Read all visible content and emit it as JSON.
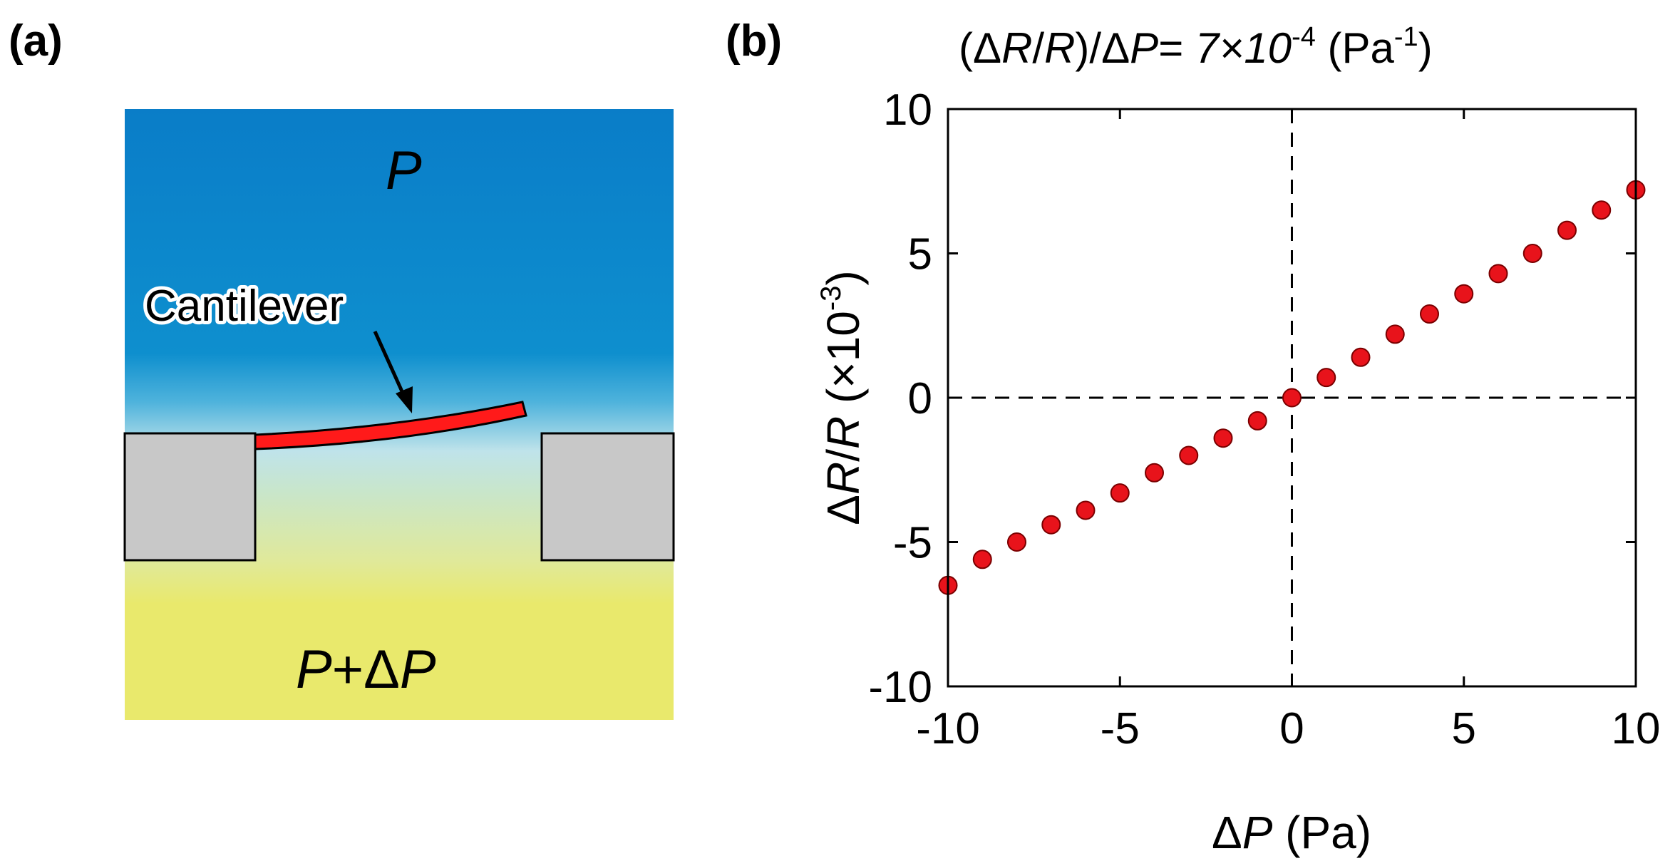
{
  "panel_a": {
    "label": "(a)",
    "top_region_label": "P",
    "bottom_region_label_p": "P",
    "bottom_region_label_plus": "+Δ",
    "bottom_region_label_p2": "P",
    "cantilever_label": "Cantilever",
    "colors": {
      "top_blue": "#0a7dc8",
      "mid_light": "#bfe3ea",
      "bottom_yellow": "#e9e96c",
      "support_gray": "#c8c8c8",
      "cantilever_red": "#ff1a1a"
    }
  },
  "chart_data": {
    "type": "scatter",
    "panel_label": "(b)",
    "title_parts": {
      "open": "(Δ",
      "r1": "R",
      "slash": "/",
      "r2": "R",
      "mid": ")/Δ",
      "p": "P",
      "eq": "= ",
      "coef": "7×10",
      "exp": "-4",
      "unit_open": " (Pa",
      "unit_exp": "-1",
      "unit_close": ")"
    },
    "xlabel_parts": {
      "delta": "Δ",
      "p": "P",
      "unit": " (Pa)"
    },
    "ylabel_parts": {
      "delta": "Δ",
      "r1": "R",
      "slash": "/",
      "r2": "R",
      "unit": " (×10",
      "exp": "-3",
      "close": ")"
    },
    "xlim": [
      -10,
      10
    ],
    "ylim": [
      -10,
      10
    ],
    "xticks": [
      -10,
      -5,
      0,
      5,
      10
    ],
    "yticks": [
      -10,
      -5,
      0,
      5,
      10
    ],
    "xtick_labels": [
      "-10",
      "-5",
      "0",
      "5",
      "10"
    ],
    "ytick_labels": [
      "-10",
      "-5",
      "0",
      "5",
      "10"
    ],
    "reference_lines": {
      "x": 0,
      "y": 0,
      "style": "dashed"
    },
    "marker_color": "#e8131b",
    "series": [
      {
        "name": "ΔR/R",
        "x": [
          -10,
          -9,
          -8,
          -7,
          -6,
          -5,
          -4,
          -3,
          -2,
          -1,
          0,
          1,
          2,
          3,
          4,
          5,
          6,
          7,
          8,
          9,
          10
        ],
        "y": [
          -6.5,
          -5.6,
          -5.0,
          -4.4,
          -3.9,
          -3.3,
          -2.6,
          -2.0,
          -1.4,
          -0.8,
          0.0,
          0.7,
          1.4,
          2.2,
          2.9,
          3.6,
          4.3,
          5.0,
          5.8,
          6.5,
          7.2
        ]
      }
    ]
  }
}
